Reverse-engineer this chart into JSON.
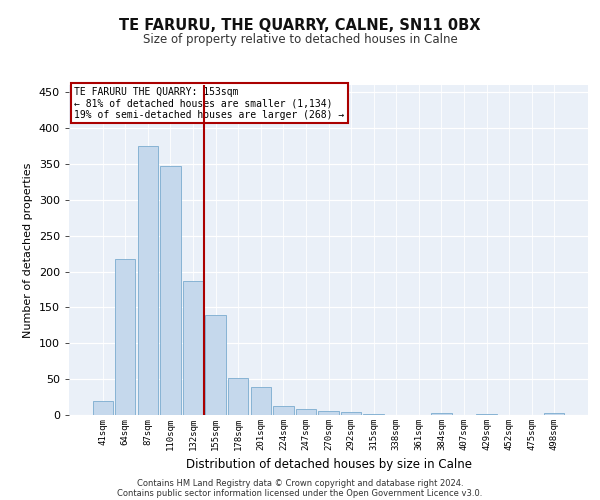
{
  "title_line1": "TE FARURU, THE QUARRY, CALNE, SN11 0BX",
  "title_line2": "Size of property relative to detached houses in Calne",
  "xlabel": "Distribution of detached houses by size in Calne",
  "ylabel": "Number of detached properties",
  "footer_line1": "Contains HM Land Registry data © Crown copyright and database right 2024.",
  "footer_line2": "Contains public sector information licensed under the Open Government Licence v3.0.",
  "annotation_line1": "TE FARURU THE QUARRY: 153sqm",
  "annotation_line2": "← 81% of detached houses are smaller (1,134)",
  "annotation_line3": "19% of semi-detached houses are larger (268) →",
  "categories": [
    "41sqm",
    "64sqm",
    "87sqm",
    "110sqm",
    "132sqm",
    "155sqm",
    "178sqm",
    "201sqm",
    "224sqm",
    "247sqm",
    "270sqm",
    "292sqm",
    "315sqm",
    "338sqm",
    "361sqm",
    "384sqm",
    "407sqm",
    "429sqm",
    "452sqm",
    "475sqm",
    "498sqm"
  ],
  "values": [
    20,
    217,
    375,
    347,
    187,
    140,
    52,
    39,
    12,
    8,
    6,
    4,
    1,
    0,
    0,
    3,
    0,
    2,
    0,
    0,
    3
  ],
  "bar_color": "#c5d8ec",
  "bar_edge_color": "#7aabcf",
  "vline_pos": 4.5,
  "vline_color": "#aa0000",
  "bg_color": "#eaf0f8",
  "annotation_box_color": "#aa0000",
  "ylim": [
    0,
    460
  ],
  "yticks": [
    0,
    50,
    100,
    150,
    200,
    250,
    300,
    350,
    400,
    450
  ]
}
